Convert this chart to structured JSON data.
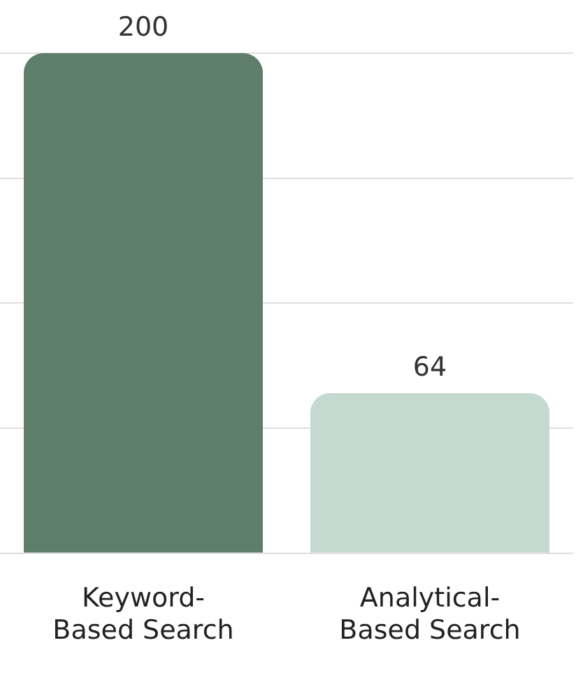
{
  "chart_data": {
    "type": "bar",
    "categories": [
      "Keyword-Based Search",
      "Analytical-Based Search"
    ],
    "values": [
      200,
      64
    ],
    "colors": [
      "#5e7e69",
      "#c4d9cf"
    ],
    "ylim": [
      0,
      200
    ],
    "yticks": [
      {
        "value": 0,
        "label": null
      },
      {
        "value": 50,
        "label": null
      },
      {
        "value": 100,
        "label": null
      },
      {
        "value": 150,
        "label": null
      },
      {
        "value": 200,
        "label": null
      }
    ],
    "grid": "y",
    "tick_labels": "x",
    "data_labels": true
  }
}
